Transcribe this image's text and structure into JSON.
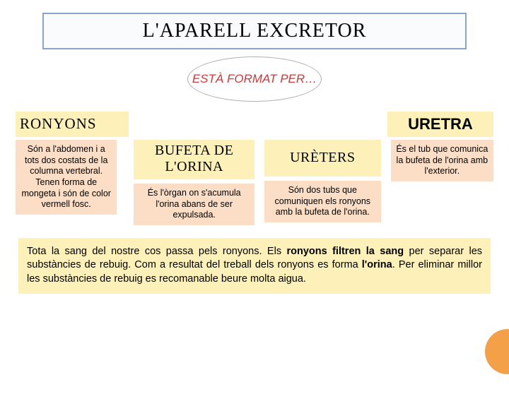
{
  "title": "L'APARELL  EXCRETOR",
  "subtitle": "ESTÀ FORMAT PER…",
  "colors": {
    "title_border": "#8aa4c8",
    "title_bg": "#f9fbfd",
    "subtitle_text": "#c63a3a",
    "label_bg": "#fdf0b9",
    "desc_bg": "#fcdec6",
    "accent_circle": "#f4a048",
    "page_bg": "#ffffff"
  },
  "typography": {
    "title_fontsize": 28,
    "label_fontsize": 21,
    "midlabel_fontsize": 20,
    "desc_fontsize": 12.5,
    "paragraph_fontsize": 14.5,
    "subtitle_fontsize": 17
  },
  "labels": {
    "ronyons": "RONYONS",
    "uretra": "URETRA",
    "bufeta": "BUFETA DE L'ORINA",
    "ureters": "URÈTERS"
  },
  "descriptions": {
    "ronyons": "Són a l'abdomen i a tots dos costats de la columna vertebral. Tenen forma de mongeta i són de color vermell fosc.",
    "bufeta": "És l'òrgan on s'acumula l'orina abans de ser expulsada.",
    "ureters": "Són dos tubs que comuniquen els ronyons amb la bufeta de l'orina.",
    "uretra": "És el tub que comunica la bufeta de l'orina amb l'exterior."
  },
  "paragraph": {
    "p1a": "Tota la sang del nostre cos passa pels ronyons. Els ",
    "p1b": "ronyons filtren la sang",
    "p1c": " per separar les substàncies de rebuig. Com a resultat del treball dels ronyons es forma ",
    "p1d": "l'orina",
    "p1e": ". Per eliminar millor les substàncies de rebuig es recomanable beure molta aigua."
  }
}
